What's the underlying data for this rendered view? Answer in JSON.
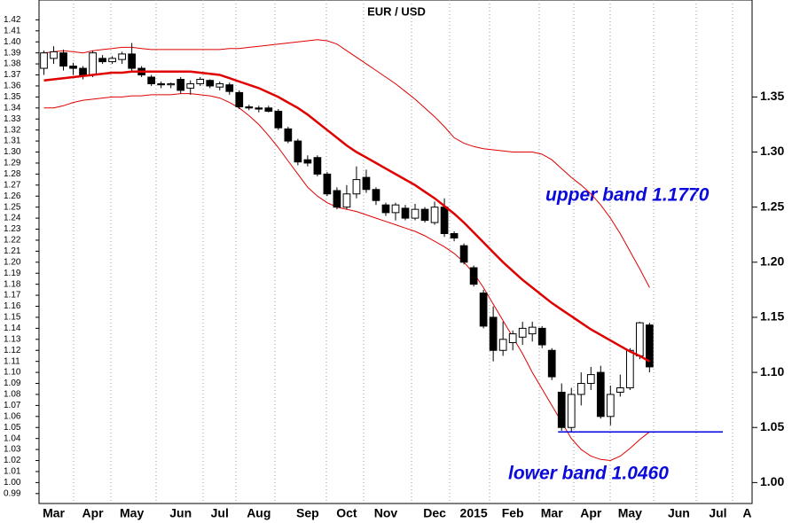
{
  "chart_data": {
    "type": "candlestick",
    "title": "EUR / USD",
    "categories": [
      null,
      "Mar",
      null,
      null,
      null,
      "Apr",
      null,
      null,
      null,
      "May",
      null,
      null,
      null,
      null,
      "Jun",
      null,
      null,
      null,
      "Jul",
      null,
      null,
      null,
      "Aug",
      null,
      null,
      null,
      null,
      "Sep",
      null,
      null,
      null,
      "Oct",
      null,
      null,
      null,
      "Nov",
      null,
      null,
      null,
      null,
      "Dec",
      null,
      null,
      null,
      "2015",
      null,
      null,
      null,
      "Feb",
      null,
      null,
      null,
      "Mar",
      null,
      null,
      null,
      "Apr",
      null,
      null,
      null,
      "May",
      null,
      null,
      null,
      null,
      "Jun",
      null,
      null,
      null,
      "Jul",
      null,
      null,
      "A"
    ],
    "candles": {
      "up_color": "#ffffff",
      "down_color": "#000000",
      "open": [
        1.376,
        1.385,
        1.39,
        1.378,
        1.376,
        1.37,
        1.385,
        1.382,
        1.384,
        1.389,
        1.376,
        1.368,
        1.362,
        1.361,
        1.366,
        1.358,
        1.362,
        1.365,
        1.359,
        1.361,
        1.354,
        1.341,
        1.34,
        1.34,
        1.337,
        1.321,
        1.31,
        1.293,
        1.295,
        1.28,
        1.265,
        1.25,
        1.262,
        1.277,
        1.266,
        1.252,
        1.245,
        1.249,
        1.24,
        1.248,
        1.236,
        1.25,
        1.226,
        1.215,
        1.195,
        1.172,
        1.15,
        1.12,
        1.127,
        1.132,
        1.135,
        1.14,
        1.12,
        1.082,
        1.05,
        1.08,
        1.09,
        1.1,
        1.06,
        1.082,
        1.086,
        1.115,
        1.143
      ],
      "high": [
        1.392,
        1.396,
        1.393,
        1.381,
        1.378,
        1.392,
        1.388,
        1.387,
        1.391,
        1.399,
        1.378,
        1.37,
        1.364,
        1.363,
        1.368,
        1.365,
        1.368,
        1.366,
        1.364,
        1.363,
        1.356,
        1.343,
        1.342,
        1.342,
        1.339,
        1.323,
        1.312,
        1.297,
        1.297,
        1.282,
        1.268,
        1.27,
        1.287,
        1.284,
        1.268,
        1.254,
        1.254,
        1.252,
        1.253,
        1.25,
        1.255,
        1.258,
        1.228,
        1.217,
        1.197,
        1.175,
        1.16,
        1.146,
        1.138,
        1.146,
        1.146,
        1.142,
        1.122,
        1.09,
        1.086,
        1.1,
        1.105,
        1.106,
        1.088,
        1.098,
        1.122,
        1.146,
        1.145
      ],
      "low": [
        1.37,
        1.38,
        1.374,
        1.37,
        1.366,
        1.368,
        1.38,
        1.38,
        1.38,
        1.372,
        1.368,
        1.36,
        1.358,
        1.358,
        1.353,
        1.352,
        1.36,
        1.358,
        1.356,
        1.352,
        1.339,
        1.338,
        1.336,
        1.336,
        1.32,
        1.308,
        1.288,
        1.287,
        1.278,
        1.26,
        1.248,
        1.248,
        1.258,
        1.263,
        1.252,
        1.242,
        1.238,
        1.238,
        1.238,
        1.236,
        1.234,
        1.223,
        1.219,
        1.198,
        1.178,
        1.14,
        1.11,
        1.115,
        1.12,
        1.125,
        1.128,
        1.122,
        1.093,
        1.047,
        1.046,
        1.07,
        1.084,
        1.058,
        1.052,
        1.078,
        1.084,
        1.112,
        1.1
      ],
      "close": [
        1.39,
        1.391,
        1.378,
        1.376,
        1.369,
        1.39,
        1.382,
        1.385,
        1.389,
        1.376,
        1.37,
        1.362,
        1.361,
        1.362,
        1.356,
        1.362,
        1.366,
        1.36,
        1.362,
        1.355,
        1.341,
        1.34,
        1.339,
        1.337,
        1.322,
        1.31,
        1.291,
        1.29,
        1.28,
        1.262,
        1.25,
        1.262,
        1.275,
        1.266,
        1.256,
        1.245,
        1.252,
        1.24,
        1.248,
        1.238,
        1.25,
        1.226,
        1.222,
        1.2,
        1.18,
        1.142,
        1.12,
        1.13,
        1.135,
        1.14,
        1.141,
        1.125,
        1.096,
        1.05,
        1.08,
        1.09,
        1.098,
        1.06,
        1.08,
        1.086,
        1.12,
        1.145,
        1.105
      ]
    },
    "middle_band": {
      "color": "#e00000",
      "values": [
        1.365,
        1.366,
        1.367,
        1.368,
        1.369,
        1.37,
        1.371,
        1.372,
        1.372,
        1.373,
        1.373,
        1.373,
        1.373,
        1.373,
        1.373,
        1.373,
        1.372,
        1.371,
        1.37,
        1.367,
        1.364,
        1.361,
        1.358,
        1.354,
        1.35,
        1.345,
        1.34,
        1.334,
        1.327,
        1.32,
        1.313,
        1.306,
        1.3,
        1.295,
        1.29,
        1.285,
        1.28,
        1.275,
        1.27,
        1.264,
        1.258,
        1.251,
        1.244,
        1.236,
        1.227,
        1.218,
        1.209,
        1.2,
        1.192,
        1.184,
        1.177,
        1.17,
        1.163,
        1.157,
        1.151,
        1.145,
        1.139,
        1.134,
        1.129,
        1.124,
        1.119,
        1.115,
        1.11
      ]
    },
    "upper_band": {
      "color": "#e00000",
      "values": [
        1.39,
        1.391,
        1.392,
        1.391,
        1.39,
        1.392,
        1.393,
        1.394,
        1.395,
        1.395,
        1.394,
        1.393,
        1.393,
        1.393,
        1.393,
        1.393,
        1.393,
        1.393,
        1.393,
        1.394,
        1.394,
        1.395,
        1.396,
        1.397,
        1.398,
        1.399,
        1.4,
        1.401,
        1.402,
        1.401,
        1.398,
        1.392,
        1.386,
        1.38,
        1.374,
        1.368,
        1.362,
        1.355,
        1.348,
        1.34,
        1.332,
        1.323,
        1.313,
        1.308,
        1.305,
        1.303,
        1.302,
        1.301,
        1.3,
        1.3,
        1.3,
        1.298,
        1.293,
        1.285,
        1.277,
        1.27,
        1.262,
        1.252,
        1.24,
        1.226,
        1.21,
        1.194,
        1.177
      ]
    },
    "lower_band": {
      "color": "#e00000",
      "values": [
        1.34,
        1.34,
        1.342,
        1.345,
        1.347,
        1.348,
        1.349,
        1.35,
        1.35,
        1.351,
        1.351,
        1.352,
        1.352,
        1.352,
        1.353,
        1.353,
        1.352,
        1.351,
        1.349,
        1.345,
        1.34,
        1.333,
        1.325,
        1.315,
        1.304,
        1.292,
        1.28,
        1.268,
        1.26,
        1.254,
        1.25,
        1.248,
        1.246,
        1.243,
        1.24,
        1.237,
        1.234,
        1.231,
        1.228,
        1.224,
        1.219,
        1.214,
        1.208,
        1.2,
        1.19,
        1.177,
        1.162,
        1.147,
        1.132,
        1.117,
        1.1,
        1.085,
        1.07,
        1.055,
        1.04,
        1.03,
        1.024,
        1.021,
        1.02,
        1.024,
        1.031,
        1.039,
        1.046
      ]
    },
    "hline": {
      "value": 1.046,
      "color": "#0000e0"
    },
    "annotations": [
      {
        "text": "upper band 1.1770"
      },
      {
        "text": "lower band 1.0460"
      }
    ],
    "ylim": [
      0.981,
      1.438
    ],
    "yticks": [
      0.99,
      {
        "value": 1,
        "label": "1.00"
      },
      1.01,
      1.02,
      1.03,
      1.04,
      1.05,
      1.06,
      1.07,
      1.08,
      1.09,
      {
        "value": 1.1,
        "label": "1.10"
      },
      1.11,
      1.12,
      1.13,
      1.14,
      1.15,
      1.16,
      1.17,
      1.18,
      1.19,
      {
        "value": 1.2,
        "label": "1.20"
      },
      1.21,
      1.22,
      1.23,
      1.24,
      1.25,
      1.26,
      1.27,
      1.28,
      1.29,
      {
        "value": 1.3,
        "label": "1.30"
      },
      1.31,
      1.32,
      1.33,
      1.34,
      1.35,
      1.36,
      1.37,
      1.38,
      1.39,
      {
        "value": 1.4,
        "label": "1.40"
      },
      1.41,
      1.42
    ],
    "y2lim": [
      0.981,
      1.438
    ],
    "y2ticks": [
      {
        "value": 1,
        "label": "1.00"
      },
      1.05,
      {
        "value": 1.1,
        "label": "1.10"
      },
      1.15,
      {
        "value": 1.2,
        "label": "1.20"
      },
      1.25,
      {
        "value": 1.3,
        "label": "1.30"
      },
      1.35
    ]
  }
}
